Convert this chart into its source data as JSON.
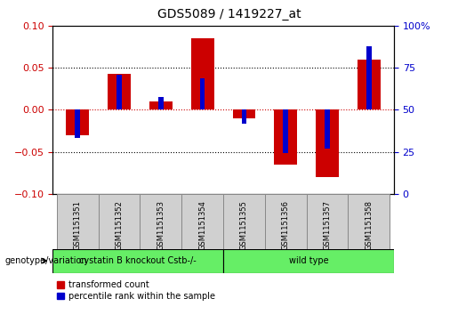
{
  "title": "GDS5089 / 1419227_at",
  "samples": [
    "GSM1151351",
    "GSM1151352",
    "GSM1151353",
    "GSM1151354",
    "GSM1151355",
    "GSM1151356",
    "GSM1151357",
    "GSM1151358"
  ],
  "red_values": [
    -0.03,
    0.043,
    0.01,
    0.085,
    -0.01,
    -0.065,
    -0.08,
    0.06
  ],
  "blue_values": [
    -0.033,
    0.042,
    0.015,
    0.038,
    -0.016,
    -0.052,
    -0.046,
    0.076
  ],
  "red_color": "#cc0000",
  "blue_color": "#0000cc",
  "ylim": [
    -0.1,
    0.1
  ],
  "y_left_ticks": [
    -0.1,
    -0.05,
    0.0,
    0.05,
    0.1
  ],
  "y_right_ticks": [
    0,
    25,
    50,
    75,
    100
  ],
  "dotted_lines": [
    -0.05,
    0.05
  ],
  "zero_line_color": "#cc0000",
  "dotted_color": "black",
  "group1_label": "cystatin B knockout Cstb-/-",
  "group2_label": "wild type",
  "group1_count": 4,
  "group2_count": 4,
  "group_color": "#66ee66",
  "group_label_prefix": "genotype/variation",
  "legend_red": "transformed count",
  "legend_blue": "percentile rank within the sample",
  "red_bar_width": 0.55,
  "blue_bar_width": 0.12,
  "background_color": "#ffffff",
  "plot_bg": "#ffffff",
  "tick_label_color_left": "#cc0000",
  "tick_label_color_right": "#0000cc",
  "sample_cell_color": "#d0d0d0",
  "title_fontsize": 10,
  "tick_fontsize": 8,
  "sample_fontsize": 6,
  "group_fontsize": 7,
  "legend_fontsize": 7,
  "genotype_label_fontsize": 7
}
